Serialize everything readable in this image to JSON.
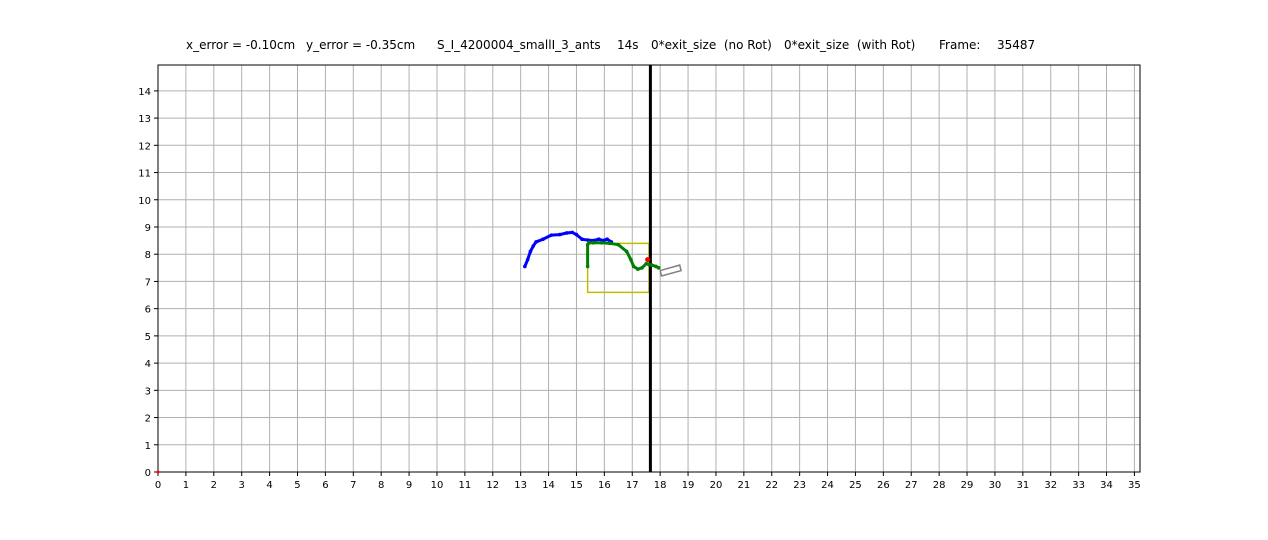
{
  "header": {
    "x_error": "x_error = -0.10cm",
    "y_error": "y_error = -0.35cm",
    "run_name": "S_I_4200004_smallI_3_ants",
    "time": "14s",
    "exit_no_rot": "0*exit_size  (no Rot)",
    "exit_with_rot": "0*exit_size  (with Rot)",
    "frame_label": "Frame:",
    "frame_value": "35487"
  },
  "chart_data": {
    "type": "line",
    "title": "",
    "xlabel": "",
    "ylabel": "",
    "xlim": [
      0,
      35.2
    ],
    "ylim": [
      0,
      14.95
    ],
    "xticks": [
      0,
      1,
      2,
      3,
      4,
      5,
      6,
      7,
      8,
      9,
      10,
      11,
      12,
      13,
      14,
      15,
      16,
      17,
      18,
      19,
      20,
      21,
      22,
      23,
      24,
      25,
      26,
      27,
      28,
      29,
      30,
      31,
      32,
      33,
      34,
      35
    ],
    "yticks": [
      0,
      1,
      2,
      3,
      4,
      5,
      6,
      7,
      8,
      9,
      10,
      11,
      12,
      13,
      14
    ],
    "grid": true,
    "colors": {
      "blue_path": "#0000ff",
      "green_path": "#008000",
      "yellow_box": "#bfbf00",
      "wall": "#000000",
      "red_marker": "#ff0000",
      "load_outline": "#808080",
      "grid": "#b0b0b0"
    },
    "series": [
      {
        "color": "#0000ff",
        "x": [
          13.15,
          13.25,
          13.35,
          13.45,
          13.55,
          13.8,
          14.1,
          14.4,
          14.65,
          14.85,
          15.0,
          15.2,
          15.4,
          15.6,
          15.8,
          15.95,
          16.1,
          16.25
        ],
        "y": [
          7.55,
          7.8,
          8.1,
          8.3,
          8.45,
          8.55,
          8.7,
          8.72,
          8.78,
          8.8,
          8.72,
          8.55,
          8.52,
          8.5,
          8.55,
          8.5,
          8.55,
          8.45
        ]
      },
      {
        "color": "#008000",
        "x": [
          15.4,
          15.4,
          15.45,
          15.6,
          15.9,
          16.2,
          16.5,
          16.8,
          16.95,
          17.05,
          17.2,
          17.35,
          17.5,
          17.6,
          17.7,
          17.85,
          17.95
        ],
        "y": [
          7.55,
          8.35,
          8.42,
          8.42,
          8.42,
          8.4,
          8.35,
          8.1,
          7.8,
          7.55,
          7.45,
          7.5,
          7.65,
          7.62,
          7.6,
          7.55,
          7.5
        ]
      }
    ],
    "yellow_box": {
      "x": [
        15.4,
        17.6,
        17.6,
        15.4,
        15.4
      ],
      "y": [
        8.4,
        8.4,
        6.6,
        6.6,
        8.4
      ]
    },
    "wall_x": 17.65,
    "red_marker": {
      "x": 17.55,
      "y": 7.8
    },
    "load_outline": {
      "x": [
        18.0,
        18.7,
        18.75,
        18.05,
        18.0
      ],
      "y": [
        7.4,
        7.6,
        7.4,
        7.2,
        7.4
      ]
    }
  }
}
